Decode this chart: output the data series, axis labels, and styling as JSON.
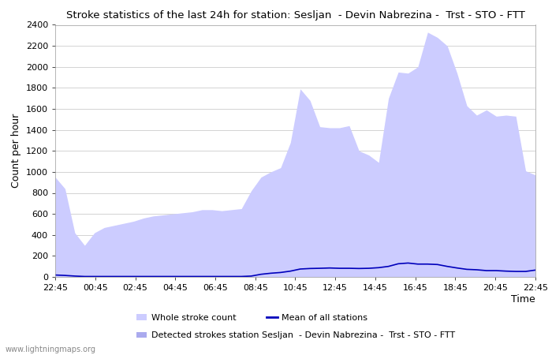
{
  "title": "Stroke statistics of the last 24h for station: Sesljan  - Devin Nabrezina -  Trst - STO - FTT",
  "ylabel": "Count per hour",
  "xlabel": "Time",
  "watermark": "www.lightningmaps.org",
  "legend": {
    "whole_stroke_label": "Whole stroke count",
    "station_label": "Detected strokes station Sesljan  - Devin Nabrezina -  Trst - STO - FTT",
    "mean_label": "Mean of all stations"
  },
  "x_ticks": [
    "22:45",
    "00:45",
    "02:45",
    "04:45",
    "06:45",
    "08:45",
    "10:45",
    "12:45",
    "14:45",
    "16:45",
    "18:45",
    "20:45",
    "22:45"
  ],
  "ylim": [
    0,
    2400
  ],
  "yticks": [
    0,
    200,
    400,
    600,
    800,
    1000,
    1200,
    1400,
    1600,
    1800,
    2000,
    2200,
    2400
  ],
  "whole_stroke_color": "#ccccff",
  "station_color": "#aaaaee",
  "mean_color": "#0000bb",
  "background_color": "#ffffff",
  "whole_stroke_data": [
    950,
    840,
    420,
    300,
    420,
    470,
    490,
    510,
    530,
    560,
    580,
    590,
    600,
    610,
    620,
    640,
    640,
    630,
    640,
    650,
    820,
    950,
    1000,
    1040,
    1280,
    1790,
    1680,
    1430,
    1420,
    1420,
    1440,
    1200,
    1160,
    1090,
    1700,
    1950,
    1940,
    2000,
    2330,
    2280,
    2200,
    1940,
    1630,
    1540,
    1590,
    1530,
    1540,
    1530,
    1010,
    970
  ],
  "mean_data": [
    18,
    14,
    8,
    4,
    4,
    4,
    4,
    4,
    4,
    4,
    4,
    4,
    4,
    4,
    4,
    4,
    4,
    4,
    4,
    4,
    8,
    25,
    35,
    42,
    55,
    75,
    80,
    82,
    85,
    82,
    82,
    80,
    82,
    88,
    100,
    125,
    132,
    122,
    122,
    118,
    100,
    85,
    72,
    68,
    60,
    60,
    55,
    52,
    52,
    65
  ]
}
